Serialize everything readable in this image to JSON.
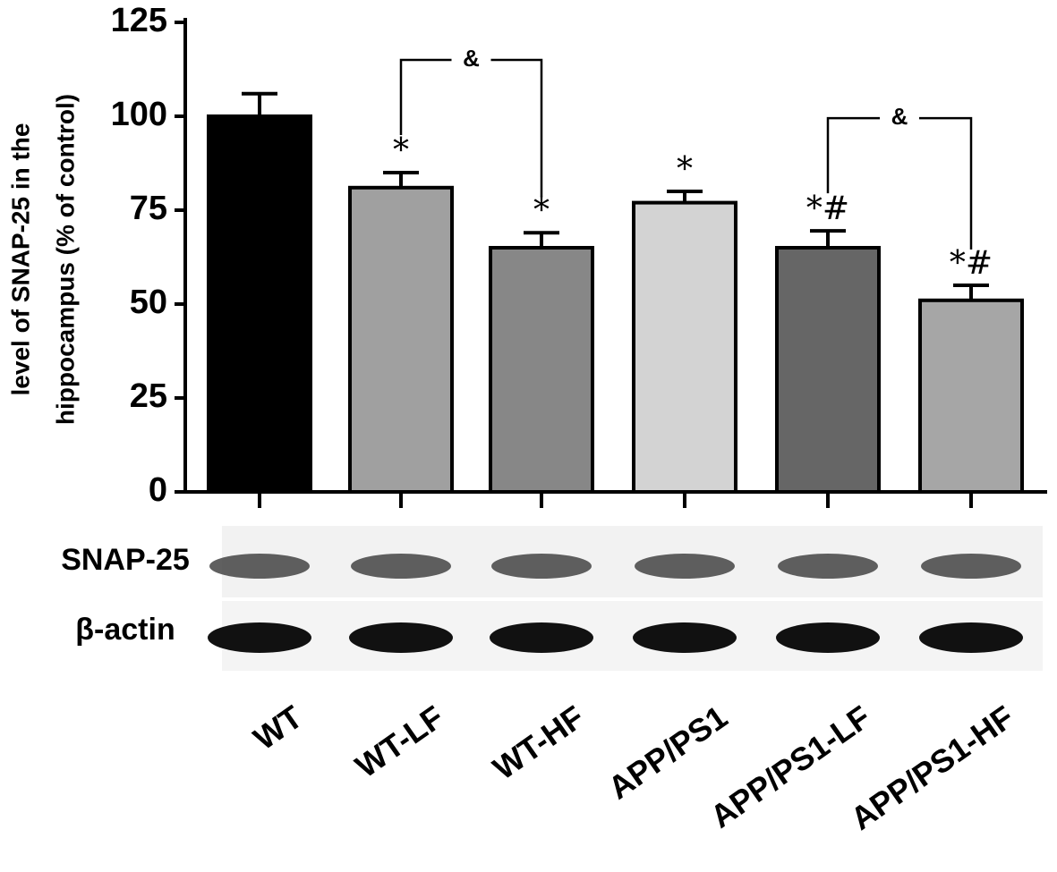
{
  "chart_data": {
    "type": "bar",
    "ylabel": [
      "level of SNAP-25 in the",
      "hippocampus (% of control)"
    ],
    "categories": [
      "WT",
      "WT-LF",
      "WT-HF",
      "APP/PS1",
      "APP/PS1-LF",
      "APP/PS1-HF"
    ],
    "values": [
      100,
      81,
      65,
      77,
      65,
      51
    ],
    "errors": [
      6,
      4,
      4,
      3,
      4.5,
      4
    ],
    "colors": [
      "#000000",
      "#a0a0a0",
      "#878787",
      "#d3d3d3",
      "#666666",
      "#a6a6a6"
    ],
    "ylim": [
      0,
      125
    ],
    "yticks": [
      0,
      25,
      50,
      75,
      100,
      125
    ],
    "annotations": [
      {
        "category": "WT-LF",
        "text": "*"
      },
      {
        "category": "WT-HF",
        "text": "*"
      },
      {
        "category": "APP/PS1",
        "text": "*"
      },
      {
        "category": "APP/PS1-LF",
        "text": "*#"
      },
      {
        "category": "APP/PS1-HF",
        "text": "*#"
      }
    ],
    "brackets": [
      {
        "from": "WT-LF",
        "to": "WT-HF",
        "text": "&"
      },
      {
        "from": "APP/PS1-LF",
        "to": "APP/PS1-HF",
        "text": "&"
      }
    ],
    "blot_labels": [
      "SNAP-25",
      "β-actin"
    ]
  }
}
